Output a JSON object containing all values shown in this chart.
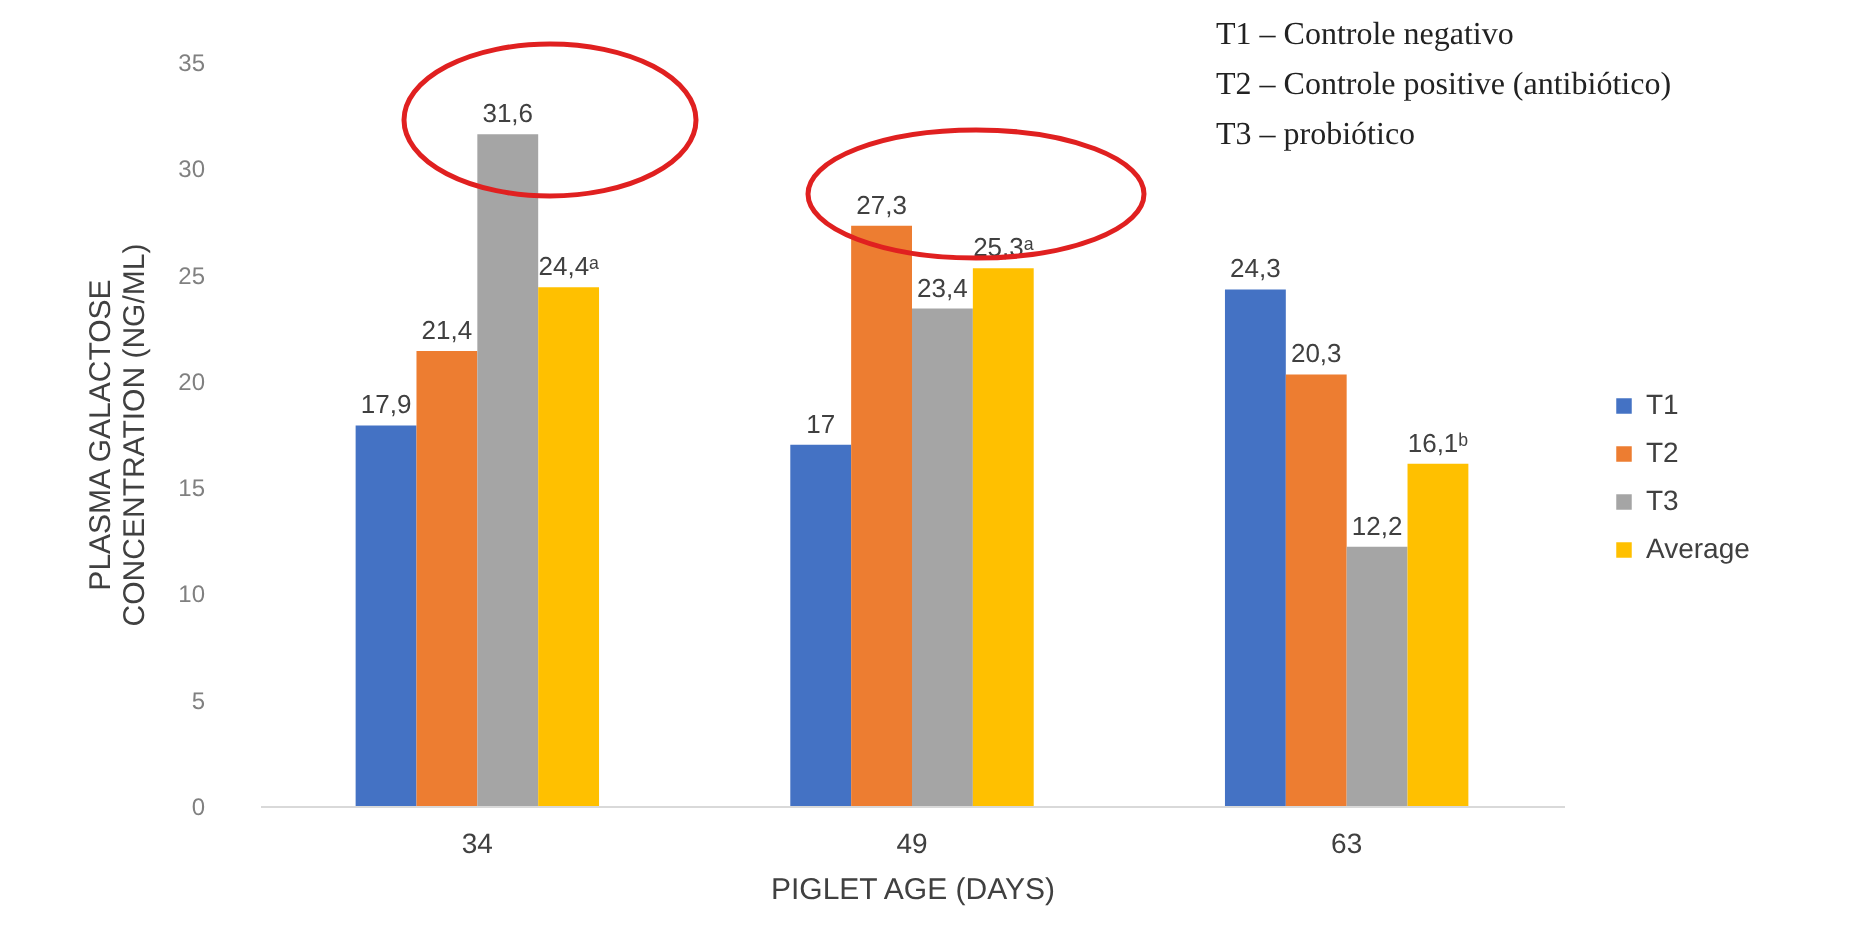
{
  "chart_data": {
    "type": "bar",
    "categories": [
      "34",
      "49",
      "63"
    ],
    "series": [
      {
        "name": "T1",
        "color": "#4472c4",
        "values": [
          17.9,
          17,
          24.3
        ],
        "value_labels": [
          "17,9",
          "17",
          "24,3"
        ]
      },
      {
        "name": "T2",
        "color": "#ed7d31",
        "values": [
          21.4,
          27.3,
          20.3
        ],
        "value_labels": [
          "21,4",
          "27,3",
          "20,3"
        ]
      },
      {
        "name": "T3",
        "color": "#a5a5a5",
        "values": [
          31.6,
          23.4,
          12.2
        ],
        "value_labels": [
          "31,6",
          "23,4",
          "12,2"
        ]
      },
      {
        "name": "Average",
        "color": "#ffc000",
        "values": [
          24.4,
          25.3,
          16.1
        ],
        "value_labels": [
          "24,4ᵃ",
          "25,3ᵃ",
          "16,1ᵇ"
        ]
      }
    ],
    "xlabel": "PIGLET AGE (DAYS)",
    "ylabel": "PLASMA GALACTOSE CONCENTRATION  (NG/ML)",
    "ylim": [
      0,
      35
    ],
    "yticks": [
      0,
      5,
      10,
      15,
      20,
      25,
      30,
      35
    ],
    "grid": false,
    "legend": "right",
    "annotations": [
      "T1 – Controle negativo",
      "T2 – Controle positive (antibiótico)",
      "T3 – probiótico"
    ]
  }
}
